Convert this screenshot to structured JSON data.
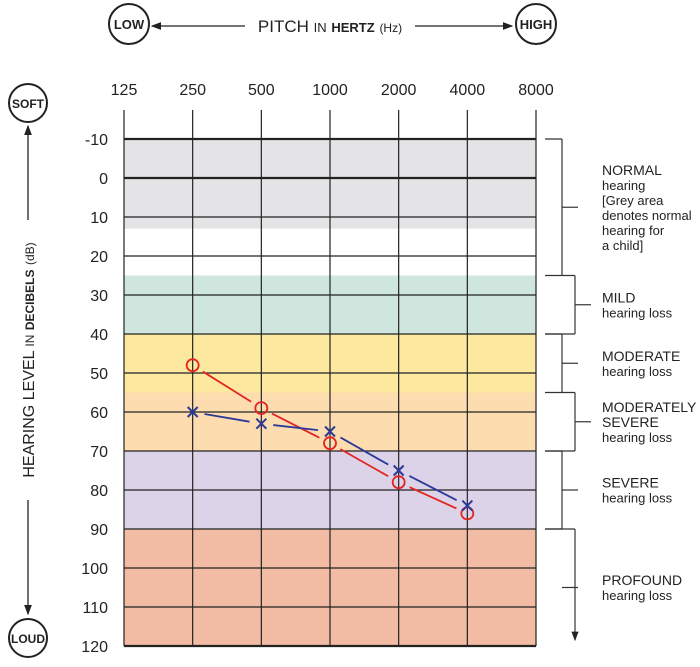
{
  "chart_data": {
    "type": "line",
    "x_title": {
      "main": "PITCH",
      "in": "IN",
      "unit_bold": "HERTZ",
      "unit": "(Hz)"
    },
    "x_end_labels": {
      "low": "LOW",
      "high": "HIGH"
    },
    "y_title": {
      "main": "HEARING LEVEL",
      "in": "IN",
      "unit_bold": "DECIBELS",
      "unit": "(dB)"
    },
    "y_end_labels": {
      "soft": "SOFT",
      "loud": "LOUD"
    },
    "categories": [
      "125",
      "250",
      "500",
      "1000",
      "2000",
      "4000",
      "8000"
    ],
    "y_ticks": [
      "-10",
      "0",
      "10",
      "20",
      "30",
      "40",
      "50",
      "60",
      "70",
      "80",
      "90",
      "100",
      "110",
      "120"
    ],
    "ylim": [
      -10,
      120
    ],
    "y_inverted": true,
    "grid": true,
    "series": [
      {
        "marker": "circle",
        "color": "#e52421",
        "x": [
          "250",
          "500",
          "1000",
          "2000",
          "4000"
        ],
        "values": [
          48,
          59,
          68,
          78,
          86
        ]
      },
      {
        "marker": "x",
        "color": "#2b3a9a",
        "x": [
          "250",
          "500",
          "1000",
          "2000",
          "4000"
        ],
        "values": [
          60,
          63,
          65,
          75,
          84
        ]
      }
    ],
    "bands": [
      {
        "from": -10,
        "to": 13,
        "color": "#e4e4e6"
      },
      {
        "from": 25,
        "to": 40,
        "color": "#cfe6df"
      },
      {
        "from": 40,
        "to": 55,
        "color": "#fde8a0"
      },
      {
        "from": 55,
        "to": 70,
        "color": "#fddcb0"
      },
      {
        "from": 70,
        "to": 90,
        "color": "#ddd3e8"
      },
      {
        "from": 90,
        "to": 120,
        "color": "#f2bba3"
      }
    ],
    "categories_ranges": [
      {
        "from": -10,
        "to": 25,
        "lines": [
          "NORMAL",
          "hearing",
          "[Grey area",
          "denotes normal",
          "hearing for",
          "a child]"
        ]
      },
      {
        "from": 25,
        "to": 40,
        "lines": [
          "MILD",
          "hearing loss"
        ]
      },
      {
        "from": 40,
        "to": 55,
        "lines": [
          "MODERATE",
          "hearing loss"
        ]
      },
      {
        "from": 55,
        "to": 70,
        "lines": [
          "MODERATELY",
          "SEVERE",
          "hearing loss"
        ]
      },
      {
        "from": 70,
        "to": 90,
        "lines": [
          "SEVERE",
          "hearing loss"
        ]
      },
      {
        "from": 90,
        "to": 120,
        "lines": [
          "PROFOUND",
          "hearing loss"
        ]
      }
    ]
  }
}
